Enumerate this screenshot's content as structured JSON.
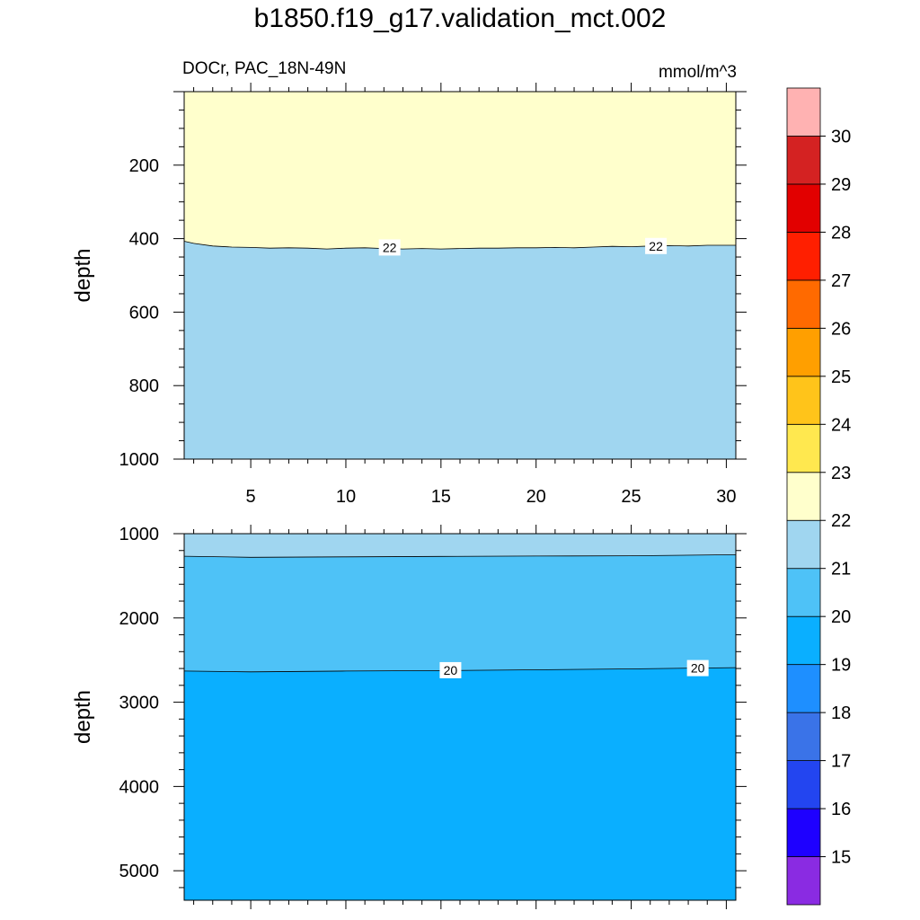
{
  "title": "b1850.f19_g17.validation_mct.002",
  "subtitle_left": "DOCr, PAC_18N-49N",
  "subtitle_right": "mmol/m^3",
  "chart_data": [
    {
      "type": "contour",
      "panel": "upper",
      "ylabel": "depth",
      "xlim": [
        1.5,
        30.5
      ],
      "ylim": [
        0,
        1000
      ],
      "y_inverted": true,
      "xticks": [
        5,
        10,
        15,
        20,
        25,
        30
      ],
      "yticks": [
        200,
        400,
        600,
        800,
        1000
      ],
      "regions": [
        {
          "range": "22-23",
          "color": "#FFFFCC",
          "depth_from": 0,
          "depth_to": "contour_22"
        },
        {
          "range": "21-22",
          "color": "#A0D6F0",
          "depth_from": "contour_22",
          "depth_to": 1000
        }
      ],
      "contours": [
        {
          "level": 22,
          "label": "22",
          "x": [
            1.5,
            2,
            3,
            4,
            5,
            6,
            7,
            8,
            9,
            10,
            11,
            12,
            13,
            14,
            15,
            16,
            17,
            18,
            19,
            20,
            21,
            22,
            23,
            24,
            25,
            26,
            27,
            28,
            29,
            30,
            30.5
          ],
          "depth": [
            407,
            413,
            420,
            423,
            424,
            426,
            425,
            426,
            428,
            426,
            425,
            427,
            428,
            427,
            428,
            427,
            426,
            426,
            425,
            425,
            424,
            425,
            423,
            421,
            422,
            420,
            419,
            420,
            418,
            418,
            418
          ],
          "label_positions": [
            [
              12.3,
              424
            ],
            [
              26.3,
              420
            ]
          ]
        }
      ]
    },
    {
      "type": "contour",
      "panel": "lower",
      "ylabel": "depth",
      "xlim": [
        1.5,
        30.5
      ],
      "ylim": [
        1000,
        5350
      ],
      "y_inverted": true,
      "xticks": [
        5,
        10,
        15,
        20,
        25,
        30
      ],
      "yticks": [
        1000,
        2000,
        3000,
        4000,
        5000
      ],
      "regions": [
        {
          "range": "21-22",
          "color": "#A0D6F0",
          "depth_from": 1000,
          "depth_to": "contour_21"
        },
        {
          "range": "20-21",
          "color": "#4EC2F7",
          "depth_from": "contour_21",
          "depth_to": "contour_20"
        },
        {
          "range": "19-20",
          "color": "#0AAFFF",
          "depth_from": "contour_20",
          "depth_to": 5350
        }
      ],
      "contours": [
        {
          "level": 21,
          "label": "",
          "x": [
            1.5,
            5,
            10,
            15,
            20,
            25,
            30.5
          ],
          "depth": [
            1268,
            1280,
            1275,
            1270,
            1266,
            1262,
            1250
          ]
        },
        {
          "level": 20,
          "label": "20",
          "x": [
            1.5,
            5,
            10,
            15,
            20,
            25,
            30.5
          ],
          "depth": [
            2630,
            2640,
            2630,
            2625,
            2615,
            2605,
            2590
          ],
          "label_positions": [
            [
              15.5,
              2620
            ],
            [
              28.5,
              2595
            ]
          ]
        }
      ]
    }
  ],
  "colorbar": {
    "levels": [
      "15",
      "16",
      "17",
      "18",
      "19",
      "20",
      "21",
      "22",
      "23",
      "24",
      "25",
      "26",
      "27",
      "28",
      "29",
      "30"
    ],
    "colors": [
      "#8A2BE2",
      "#1E00FF",
      "#2345F0",
      "#3A73E8",
      "#1E8FFF",
      "#0AAFFF",
      "#4EC2F7",
      "#A0D6F0",
      "#FFFFCC",
      "#FFE84F",
      "#FFC41A",
      "#FF9F00",
      "#FF6A00",
      "#FF1F00",
      "#E20000",
      "#D42222",
      "#FFB2B2"
    ]
  }
}
